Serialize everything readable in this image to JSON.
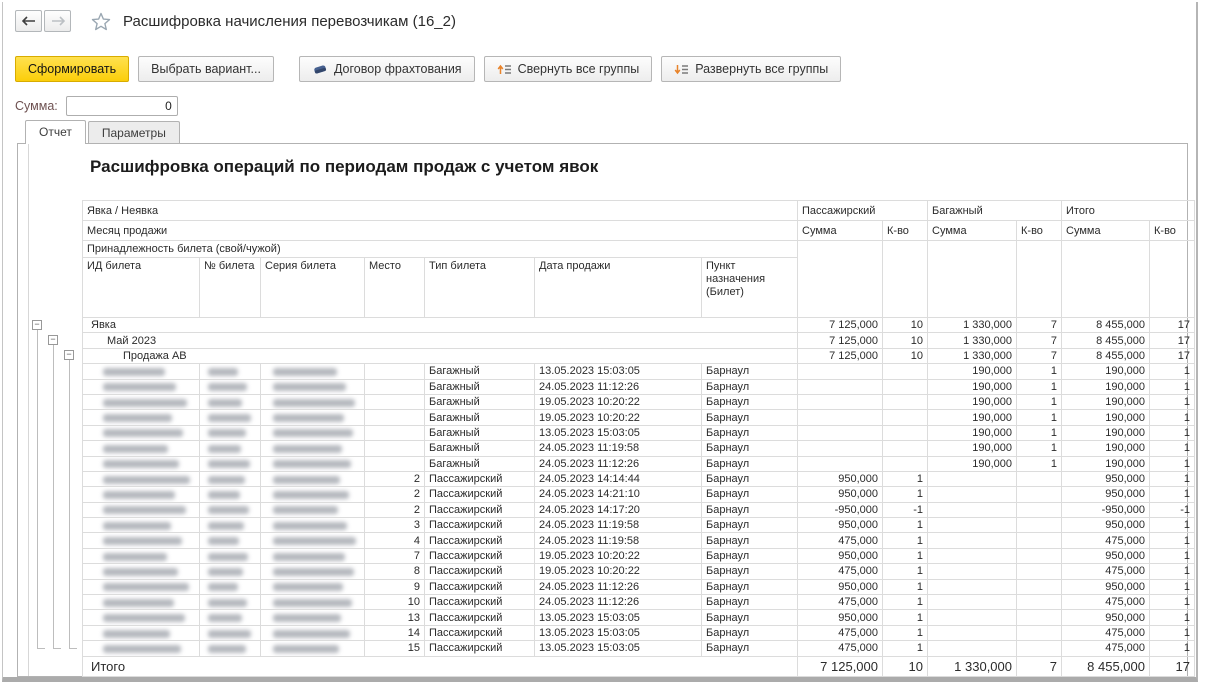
{
  "window": {
    "title": "Расшифровка начисления перевозчикам (16_2)"
  },
  "toolbar": {
    "generate": "Сформировать",
    "choose_variant": "Выбрать вариант...",
    "charter": "Договор фрахтования",
    "collapse_all": "Свернуть все группы",
    "expand_all": "Развернуть все группы"
  },
  "sum_field": {
    "label": "Сумма:",
    "value": "0"
  },
  "tabs": [
    {
      "label": "Отчет",
      "active": true
    },
    {
      "label": "Параметры",
      "active": false
    }
  ],
  "report": {
    "title": "Расшифровка операций по периодам продаж с учетом явок",
    "header": {
      "row1_left": "Явка / Неявка",
      "row2_left": "Месяц продажи",
      "row3_left": "Принадлежность билета (свой/чужой)",
      "groups": [
        "Пассажирский",
        "Багажный",
        "Итого"
      ],
      "measure_labels": [
        "Сумма",
        "К-во"
      ],
      "detail_columns": [
        "ИД билета",
        "№ билета",
        "Серия билета",
        "Место",
        "Тип билета",
        "Дата продажи",
        "Пункт назначения (Билет)"
      ]
    },
    "group_rows": [
      {
        "label": "Явка",
        "level": 1,
        "ps": "7 125,000",
        "pq": "10",
        "bs": "1 330,000",
        "bq": "7",
        "ts": "8 455,000",
        "tq": "17"
      },
      {
        "label": "Май 2023",
        "level": 2,
        "ps": "7 125,000",
        "pq": "10",
        "bs": "1 330,000",
        "bq": "7",
        "ts": "8 455,000",
        "tq": "17"
      },
      {
        "label": "Продажа АВ",
        "level": 3,
        "ps": "7 125,000",
        "pq": "10",
        "bs": "1 330,000",
        "bq": "7",
        "ts": "8 455,000",
        "tq": "17"
      }
    ],
    "rows": [
      {
        "place": "",
        "type": "Багажный",
        "date": "13.05.2023 15:03:05",
        "dest": "Барнаул",
        "ps": "",
        "pq": "",
        "bs": "190,000",
        "bq": "1",
        "ts": "190,000",
        "tq": "1"
      },
      {
        "place": "",
        "type": "Багажный",
        "date": "24.05.2023 11:12:26",
        "dest": "Барнаул",
        "ps": "",
        "pq": "",
        "bs": "190,000",
        "bq": "1",
        "ts": "190,000",
        "tq": "1"
      },
      {
        "place": "",
        "type": "Багажный",
        "date": "19.05.2023 10:20:22",
        "dest": "Барнаул",
        "ps": "",
        "pq": "",
        "bs": "190,000",
        "bq": "1",
        "ts": "190,000",
        "tq": "1"
      },
      {
        "place": "",
        "type": "Багажный",
        "date": "19.05.2023 10:20:22",
        "dest": "Барнаул",
        "ps": "",
        "pq": "",
        "bs": "190,000",
        "bq": "1",
        "ts": "190,000",
        "tq": "1"
      },
      {
        "place": "",
        "type": "Багажный",
        "date": "13.05.2023 15:03:05",
        "dest": "Барнаул",
        "ps": "",
        "pq": "",
        "bs": "190,000",
        "bq": "1",
        "ts": "190,000",
        "tq": "1"
      },
      {
        "place": "",
        "type": "Багажный",
        "date": "24.05.2023 11:19:58",
        "dest": "Барнаул",
        "ps": "",
        "pq": "",
        "bs": "190,000",
        "bq": "1",
        "ts": "190,000",
        "tq": "1"
      },
      {
        "place": "",
        "type": "Багажный",
        "date": "24.05.2023 11:12:26",
        "dest": "Барнаул",
        "ps": "",
        "pq": "",
        "bs": "190,000",
        "bq": "1",
        "ts": "190,000",
        "tq": "1"
      },
      {
        "place": "2",
        "type": "Пассажирский",
        "date": "24.05.2023 14:14:44",
        "dest": "Барнаул",
        "ps": "950,000",
        "pq": "1",
        "bs": "",
        "bq": "",
        "ts": "950,000",
        "tq": "1"
      },
      {
        "place": "2",
        "type": "Пассажирский",
        "date": "24.05.2023 14:21:10",
        "dest": "Барнаул",
        "ps": "950,000",
        "pq": "1",
        "bs": "",
        "bq": "",
        "ts": "950,000",
        "tq": "1"
      },
      {
        "place": "2",
        "type": "Пассажирский",
        "date": "24.05.2023 14:17:20",
        "dest": "Барнаул",
        "ps": "-950,000",
        "pq": "-1",
        "bs": "",
        "bq": "",
        "ts": "-950,000",
        "tq": "-1"
      },
      {
        "place": "3",
        "type": "Пассажирский",
        "date": "24.05.2023 11:19:58",
        "dest": "Барнаул",
        "ps": "950,000",
        "pq": "1",
        "bs": "",
        "bq": "",
        "ts": "950,000",
        "tq": "1"
      },
      {
        "place": "4",
        "type": "Пассажирский",
        "date": "24.05.2023 11:19:58",
        "dest": "Барнаул",
        "ps": "475,000",
        "pq": "1",
        "bs": "",
        "bq": "",
        "ts": "475,000",
        "tq": "1"
      },
      {
        "place": "7",
        "type": "Пассажирский",
        "date": "19.05.2023 10:20:22",
        "dest": "Барнаул",
        "ps": "950,000",
        "pq": "1",
        "bs": "",
        "bq": "",
        "ts": "950,000",
        "tq": "1"
      },
      {
        "place": "8",
        "type": "Пассажирский",
        "date": "19.05.2023 10:20:22",
        "dest": "Барнаул",
        "ps": "475,000",
        "pq": "1",
        "bs": "",
        "bq": "",
        "ts": "475,000",
        "tq": "1"
      },
      {
        "place": "9",
        "type": "Пассажирский",
        "date": "24.05.2023 11:12:26",
        "dest": "Барнаул",
        "ps": "950,000",
        "pq": "1",
        "bs": "",
        "bq": "",
        "ts": "950,000",
        "tq": "1"
      },
      {
        "place": "10",
        "type": "Пассажирский",
        "date": "24.05.2023 11:12:26",
        "dest": "Барнаул",
        "ps": "475,000",
        "pq": "1",
        "bs": "",
        "bq": "",
        "ts": "475,000",
        "tq": "1"
      },
      {
        "place": "13",
        "type": "Пассажирский",
        "date": "13.05.2023 15:03:05",
        "dest": "Барнаул",
        "ps": "950,000",
        "pq": "1",
        "bs": "",
        "bq": "",
        "ts": "950,000",
        "tq": "1"
      },
      {
        "place": "14",
        "type": "Пассажирский",
        "date": "13.05.2023 15:03:05",
        "dest": "Барнаул",
        "ps": "475,000",
        "pq": "1",
        "bs": "",
        "bq": "",
        "ts": "475,000",
        "tq": "1"
      },
      {
        "place": "15",
        "type": "Пассажирский",
        "date": "13.05.2023 15:03:05",
        "dest": "Барнаул",
        "ps": "475,000",
        "pq": "1",
        "bs": "",
        "bq": "",
        "ts": "475,000",
        "tq": "1"
      }
    ],
    "total": {
      "label": "Итого",
      "ps": "7 125,000",
      "pq": "10",
      "bs": "1 330,000",
      "bq": "7",
      "ts": "8 455,000",
      "tq": "17"
    }
  }
}
